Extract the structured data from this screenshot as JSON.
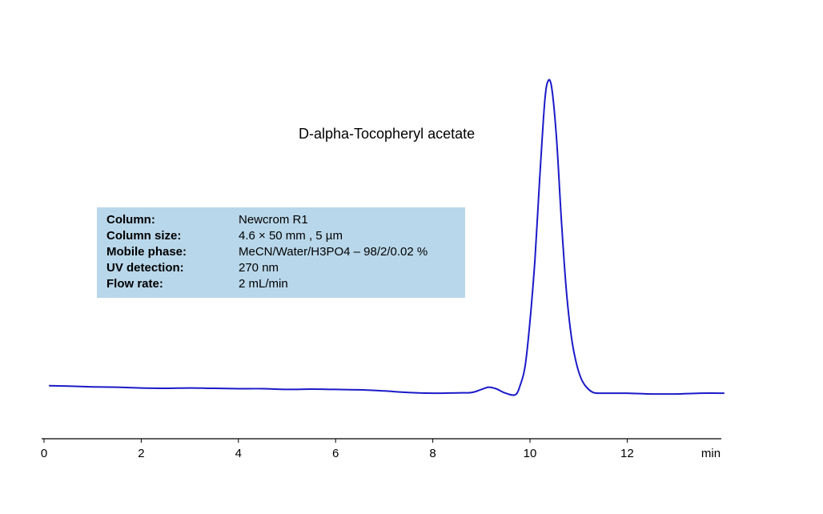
{
  "chart_data": {
    "type": "line",
    "xlabel": "min",
    "ylabel": "",
    "xlim": [
      0,
      14
    ],
    "xticks": [
      "0",
      "2",
      "4",
      "6",
      "8",
      "10",
      "12"
    ],
    "annotation": "D-alpha-Tocopheryl acetate",
    "info": [
      {
        "label": "Column:",
        "value": "Newcrom R1"
      },
      {
        "label": "Column size:",
        "value": "4.6 × 50 mm , 5 µm"
      },
      {
        "label": "Mobile phase:",
        "value": "MeCN/Water/H3PO4 – 98/2/0.02 %"
      },
      {
        "label": "UV detection:",
        "value": "270 nm"
      },
      {
        "label": "Flow rate:",
        "value": "2 mL/min"
      }
    ],
    "line_color": "#1a1ac8",
    "info_box_color": "#b9d7ea",
    "series": [
      {
        "x": [
          0.1,
          0.5,
          1.0,
          1.5,
          2.0,
          2.5,
          3.0,
          3.5,
          4.0,
          4.5,
          5.0,
          5.5,
          6.0,
          6.5,
          7.0,
          7.5,
          8.0,
          8.5,
          8.8,
          9.0,
          9.15,
          9.3,
          9.5,
          9.7,
          9.8,
          9.9,
          10.0,
          10.1,
          10.2,
          10.3,
          10.37,
          10.45,
          10.55,
          10.65,
          10.75,
          10.85,
          10.95,
          11.05,
          11.15,
          11.3,
          11.5,
          12.0,
          12.5,
          13.0,
          13.5,
          14.0
        ],
        "y": [
          0.4,
          0.35,
          0.25,
          0.2,
          0.1,
          0.05,
          0.1,
          0.05,
          0.0,
          0.0,
          -0.1,
          -0.05,
          -0.1,
          -0.15,
          -0.3,
          -0.5,
          -0.6,
          -0.55,
          -0.5,
          -0.1,
          0.2,
          0.0,
          -0.6,
          -0.8,
          0.5,
          3.0,
          9.0,
          17.0,
          28.0,
          38.0,
          41.0,
          40.0,
          33.0,
          22.0,
          13.0,
          7.0,
          3.5,
          1.4,
          0.3,
          -0.5,
          -0.6,
          -0.6,
          -0.7,
          -0.7,
          -0.6,
          -0.6
        ]
      }
    ]
  }
}
